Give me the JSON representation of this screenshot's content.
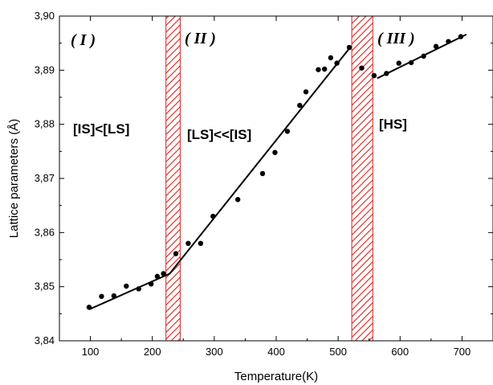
{
  "chart_data": {
    "type": "scatter",
    "xlabel": "Temperature(K)",
    "ylabel": "Lattice parameters (Å)",
    "xlim": [
      50,
      750
    ],
    "ylim": [
      3.84,
      3.9
    ],
    "x_ticks": [
      100,
      200,
      300,
      400,
      500,
      600,
      700
    ],
    "x_tick_labels": [
      "100",
      "200",
      "300",
      "400",
      "500",
      "600",
      "700"
    ],
    "y_ticks": [
      3.84,
      3.85,
      3.86,
      3.87,
      3.88,
      3.89,
      3.9
    ],
    "y_tick_labels": [
      "3,84",
      "3,85",
      "3,86",
      "3,87",
      "3,88",
      "3,89",
      "3,90"
    ],
    "grid": false,
    "points": [
      {
        "x": 98,
        "y": 3.8462
      },
      {
        "x": 118,
        "y": 3.8482
      },
      {
        "x": 138,
        "y": 3.8483
      },
      {
        "x": 158,
        "y": 3.8501
      },
      {
        "x": 178,
        "y": 3.8496
      },
      {
        "x": 198,
        "y": 3.8505
      },
      {
        "x": 208,
        "y": 3.8519
      },
      {
        "x": 218,
        "y": 3.8524
      },
      {
        "x": 238,
        "y": 3.8561
      },
      {
        "x": 258,
        "y": 3.858
      },
      {
        "x": 278,
        "y": 3.858
      },
      {
        "x": 298,
        "y": 3.863
      },
      {
        "x": 338,
        "y": 3.8661
      },
      {
        "x": 378,
        "y": 3.8709
      },
      {
        "x": 398,
        "y": 3.8748
      },
      {
        "x": 418,
        "y": 3.8787
      },
      {
        "x": 438,
        "y": 3.8835
      },
      {
        "x": 448,
        "y": 3.886
      },
      {
        "x": 468,
        "y": 3.8901
      },
      {
        "x": 478,
        "y": 3.8902
      },
      {
        "x": 488,
        "y": 3.8923
      },
      {
        "x": 498,
        "y": 3.8913
      },
      {
        "x": 518,
        "y": 3.8942
      },
      {
        "x": 538,
        "y": 3.8904
      },
      {
        "x": 558,
        "y": 3.889
      },
      {
        "x": 578,
        "y": 3.8894
      },
      {
        "x": 598,
        "y": 3.8913
      },
      {
        "x": 618,
        "y": 3.8914
      },
      {
        "x": 638,
        "y": 3.8926
      },
      {
        "x": 658,
        "y": 3.8944
      },
      {
        "x": 678,
        "y": 3.8953
      },
      {
        "x": 698,
        "y": 3.8962
      }
    ],
    "fit_lines": [
      {
        "x": [
          98,
          228
        ],
        "y": [
          3.8458,
          3.8524
        ]
      },
      {
        "x": [
          228,
          520
        ],
        "y": [
          3.8524,
          3.8943
        ]
      },
      {
        "x": [
          563,
          707
        ],
        "y": [
          3.8885,
          3.8966
        ]
      }
    ],
    "shaded_regions": [
      {
        "x_start": 222,
        "x_end": 245
      },
      {
        "x_start": 522,
        "x_end": 556
      }
    ],
    "region_labels": [
      "( I )",
      "( II )",
      "( III )"
    ],
    "phase_labels": [
      "[IS]<[LS]",
      "[LS]<<[IS]",
      "[HS]"
    ],
    "colors": {
      "hatch": "#e0201c",
      "points": "#000000",
      "lines": "#000000"
    }
  }
}
